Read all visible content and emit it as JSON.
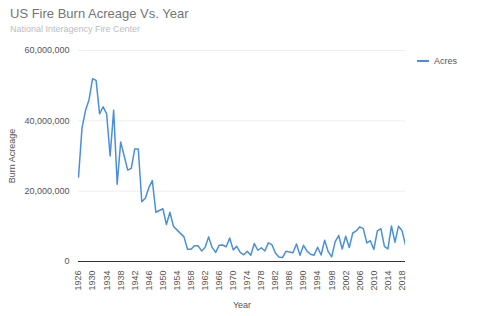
{
  "chart_data": {
    "type": "line",
    "title": "US Fire Burn Acreage Vs. Year",
    "subtitle": "National Interagency Fire Center",
    "x_label": "Year",
    "y_label": "Burn Acreage",
    "x": [
      1926,
      1927,
      1928,
      1929,
      1930,
      1931,
      1932,
      1933,
      1934,
      1935,
      1936,
      1937,
      1938,
      1939,
      1940,
      1941,
      1942,
      1943,
      1944,
      1945,
      1946,
      1947,
      1948,
      1949,
      1950,
      1951,
      1952,
      1953,
      1954,
      1955,
      1956,
      1957,
      1958,
      1959,
      1960,
      1961,
      1962,
      1963,
      1964,
      1965,
      1966,
      1967,
      1968,
      1969,
      1970,
      1971,
      1972,
      1973,
      1974,
      1975,
      1976,
      1977,
      1978,
      1979,
      1980,
      1981,
      1982,
      1983,
      1984,
      1985,
      1986,
      1987,
      1988,
      1989,
      1990,
      1991,
      1992,
      1993,
      1994,
      1995,
      1996,
      1997,
      1998,
      1999,
      2000,
      2001,
      2002,
      2003,
      2004,
      2005,
      2006,
      2007,
      2008,
      2009,
      2010,
      2011,
      2012,
      2013,
      2014,
      2015,
      2016,
      2017,
      2018,
      2019
    ],
    "series": [
      {
        "name": "Acres",
        "color": "#4a90d9",
        "values": [
          24000000,
          38000000,
          43000000,
          46000000,
          52000000,
          51500000,
          42000000,
          44000000,
          42000000,
          30000000,
          43000000,
          22000000,
          34000000,
          30000000,
          26000000,
          26500000,
          32000000,
          32000000,
          17000000,
          18000000,
          21000000,
          23000000,
          14000000,
          14500000,
          15000000,
          10500000,
          14000000,
          10000000,
          9000000,
          8000000,
          7000000,
          3500000,
          3500000,
          4500000,
          4500000,
          3000000,
          4000000,
          7000000,
          4000000,
          2600000,
          4600000,
          4700000,
          4200000,
          6700000,
          3300000,
          4300000,
          2600000,
          1900000,
          2900000,
          1800000,
          5100000,
          3200000,
          3900000,
          3000000,
          5300000,
          4800000,
          2400000,
          1300000,
          1100000,
          2900000,
          2700000,
          2500000,
          5000000,
          1800000,
          4600000,
          2950000,
          2070000,
          1800000,
          4070000,
          1840000,
          6070000,
          2860000,
          1330000,
          5630000,
          7390000,
          3570000,
          7180000,
          3960000,
          8100000,
          8690000,
          9870000,
          9330000,
          5290000,
          5920000,
          3420000,
          8710000,
          9330000,
          4320000,
          3600000,
          10100000,
          5500000,
          10000000,
          8800000,
          4700000
        ]
      }
    ],
    "xlim": [
      1926,
      2019
    ],
    "xticks": [
      1926,
      1930,
      1934,
      1938,
      1942,
      1946,
      1950,
      1954,
      1958,
      1962,
      1966,
      1970,
      1974,
      1978,
      1982,
      1986,
      1990,
      1994,
      1998,
      2002,
      2006,
      2010,
      2014,
      2018
    ],
    "ylim": [
      0,
      60000000
    ],
    "yticks": [
      0,
      {
        "value": 20000000,
        "label": "20,000,000"
      },
      {
        "value": 40000000,
        "label": "40,000,000"
      },
      {
        "value": 60000000,
        "label": "60,000,000"
      }
    ],
    "grid": true,
    "legend": "top-right"
  }
}
